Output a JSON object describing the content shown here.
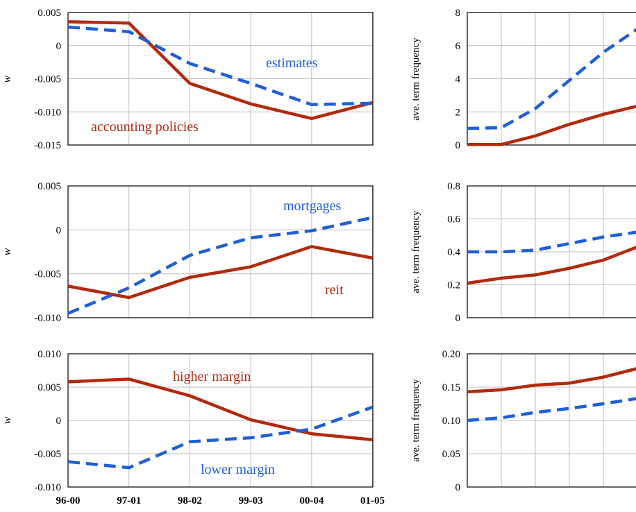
{
  "colors": {
    "red": "#b22a0e",
    "blue": "#1f5fd6"
  },
  "x_categories": [
    "96-00",
    "97-01",
    "98-02",
    "99-03",
    "00-04",
    "01-05"
  ],
  "chart_data": [
    {
      "type": "line",
      "ylabel": "w",
      "ylim": [
        -0.015,
        0.005
      ],
      "yticks": [
        "0.005",
        "0",
        "-0.005",
        "-0.010",
        "-0.015"
      ],
      "grid": true,
      "series": [
        {
          "name": "accounting policies",
          "style": "solid",
          "color": "red",
          "values": [
            0.0036,
            0.0034,
            -0.0057,
            -0.0088,
            -0.011,
            -0.0086
          ]
        },
        {
          "name": "estimates",
          "style": "dashed",
          "color": "blue",
          "values": [
            0.0028,
            0.0021,
            -0.0027,
            -0.0057,
            -0.0089,
            -0.0087
          ]
        }
      ]
    },
    {
      "type": "line",
      "ylabel": "ave. term frequency",
      "ylim": [
        0,
        8
      ],
      "yticks": [
        "8",
        "6",
        "4",
        "2",
        "0"
      ],
      "grid": true,
      "series": [
        {
          "style": "solid",
          "color": "red",
          "values": [
            0.03,
            0.03,
            0.55,
            1.25,
            1.85,
            2.35
          ]
        },
        {
          "style": "dashed",
          "color": "blue",
          "values": [
            1.0,
            1.05,
            2.2,
            3.9,
            5.6,
            7.0
          ]
        }
      ]
    },
    {
      "type": "line",
      "ylabel": "w",
      "ylim": [
        -0.01,
        0.005
      ],
      "yticks": [
        "0.005",
        "0",
        "-0.005",
        "-0.010"
      ],
      "grid": true,
      "series": [
        {
          "name": "reit",
          "style": "solid",
          "color": "red",
          "values": [
            -0.0064,
            -0.0077,
            -0.0054,
            -0.0042,
            -0.0019,
            -0.0032
          ]
        },
        {
          "name": "mortgages",
          "style": "dashed",
          "color": "blue",
          "values": [
            -0.0095,
            -0.0066,
            -0.0029,
            -0.0009,
            -0.0001,
            0.0014
          ]
        }
      ]
    },
    {
      "type": "line",
      "ylabel": "ave. term frequency",
      "ylim": [
        0,
        0.8
      ],
      "yticks": [
        "0.8",
        "0.6",
        "0.4",
        "0.2",
        "0"
      ],
      "grid": true,
      "series": [
        {
          "style": "solid",
          "color": "red",
          "values": [
            0.21,
            0.24,
            0.26,
            0.3,
            0.35,
            0.43
          ]
        },
        {
          "style": "dashed",
          "color": "blue",
          "values": [
            0.4,
            0.4,
            0.41,
            0.45,
            0.49,
            0.52
          ]
        }
      ]
    },
    {
      "type": "line",
      "ylabel": "w",
      "ylim": [
        -0.01,
        0.01
      ],
      "yticks": [
        "0.010",
        "0.005",
        "0",
        "-0.005",
        "-0.010"
      ],
      "grid": true,
      "series": [
        {
          "name": "higher margin",
          "style": "solid",
          "color": "red",
          "values": [
            0.0058,
            0.0062,
            0.0037,
            0.0001,
            -0.002,
            -0.0029
          ]
        },
        {
          "name": "lower margin",
          "style": "dashed",
          "color": "blue",
          "values": [
            -0.0062,
            -0.0071,
            -0.0032,
            -0.0026,
            -0.0013,
            0.002
          ]
        }
      ]
    },
    {
      "type": "line",
      "ylabel": "ave. term frequency",
      "ylim": [
        0,
        0.2
      ],
      "yticks": [
        "0.20",
        "0.15",
        "0.10",
        "0.05",
        "0"
      ],
      "grid": true,
      "series": [
        {
          "style": "solid",
          "color": "red",
          "values": [
            0.143,
            0.146,
            0.153,
            0.156,
            0.165,
            0.178
          ]
        },
        {
          "style": "dashed",
          "color": "blue",
          "values": [
            0.1,
            0.104,
            0.112,
            0.118,
            0.125,
            0.133
          ]
        }
      ]
    }
  ]
}
